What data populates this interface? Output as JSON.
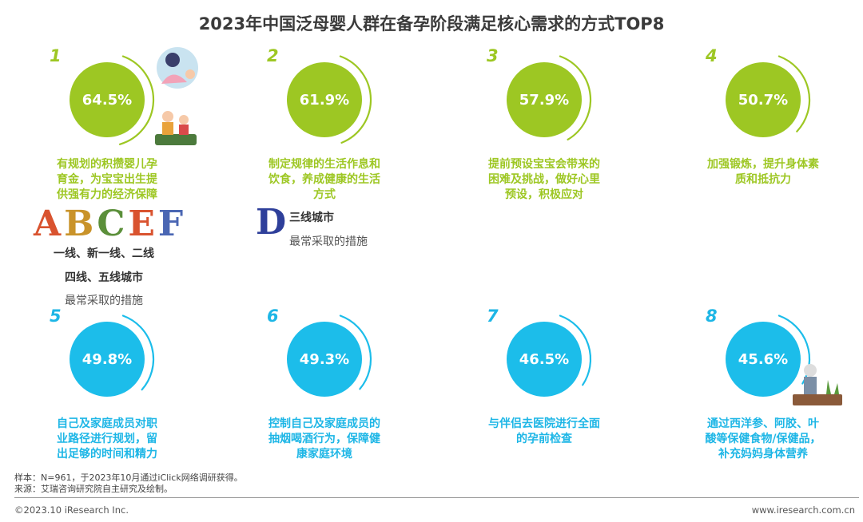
{
  "title": "2023年中国泛母婴人群在备孕阶段满足核心需求的方式TOP8",
  "chart_data": {
    "type": "bar",
    "title": "2023年中国泛母婴人群在备孕阶段满足核心需求的方式TOP8",
    "items": [
      {
        "rank": "1",
        "value": "64.5%",
        "pct": 64.5,
        "label_lines": [
          "有规划的积攒婴儿孕",
          "育金，为宝宝出生提",
          "供强有力的经济保障"
        ],
        "color": "green"
      },
      {
        "rank": "2",
        "value": "61.9%",
        "pct": 61.9,
        "label_lines": [
          "制定规律的生活作息和",
          "饮食，养成健康的生活",
          "方式"
        ],
        "color": "green"
      },
      {
        "rank": "3",
        "value": "57.9%",
        "pct": 57.9,
        "label_lines": [
          "提前预设宝宝会带来的",
          "困难及挑战，做好心里",
          "预设，积极应对"
        ],
        "color": "green"
      },
      {
        "rank": "4",
        "value": "50.7%",
        "pct": 50.7,
        "label_lines": [
          "加强锻炼，提升身体素",
          "质和抵抗力"
        ],
        "color": "green"
      },
      {
        "rank": "5",
        "value": "49.8%",
        "pct": 49.8,
        "label_lines": [
          "自己及家庭成员对职",
          "业路径进行规划，留",
          "出足够的时间和精力"
        ],
        "color": "blue"
      },
      {
        "rank": "6",
        "value": "49.3%",
        "pct": 49.3,
        "label_lines": [
          "控制自己及家庭成员的",
          "抽烟喝酒行为，保障健",
          "康家庭环境"
        ],
        "color": "blue"
      },
      {
        "rank": "7",
        "value": "46.5%",
        "pct": 46.5,
        "label_lines": [
          "与伴侣去医院进行全面",
          "的孕前检查"
        ],
        "color": "blue"
      },
      {
        "rank": "8",
        "value": "45.6%",
        "pct": 45.6,
        "label_lines": [
          "通过西洋参、阿胶、叶",
          "酸等保健食物/保健品，",
          "补充妈妈身体营养"
        ],
        "color": "blue"
      }
    ]
  },
  "notes": {
    "letters": [
      "A",
      "B",
      "C",
      "E",
      "F"
    ],
    "group1_line1": "一线、新一线、二线",
    "group1_line2": "四线、五线城市",
    "group1_sub": "最常采取的措施",
    "letter_d": "D",
    "group2_line1": "三线城市",
    "group2_sub": "最常采取的措施"
  },
  "footer": {
    "sample": "样本：N=961，于2023年10月通过iClick网络调研获得。",
    "source": "来源：艾瑞咨询研究院自主研究及绘制。",
    "copyright": "©2023.10 iResearch Inc.",
    "website": "www.iresearch.com.cn"
  },
  "colors": {
    "green": "#9dc723",
    "blue": "#1cbdea",
    "title": "#3a3a3a"
  }
}
